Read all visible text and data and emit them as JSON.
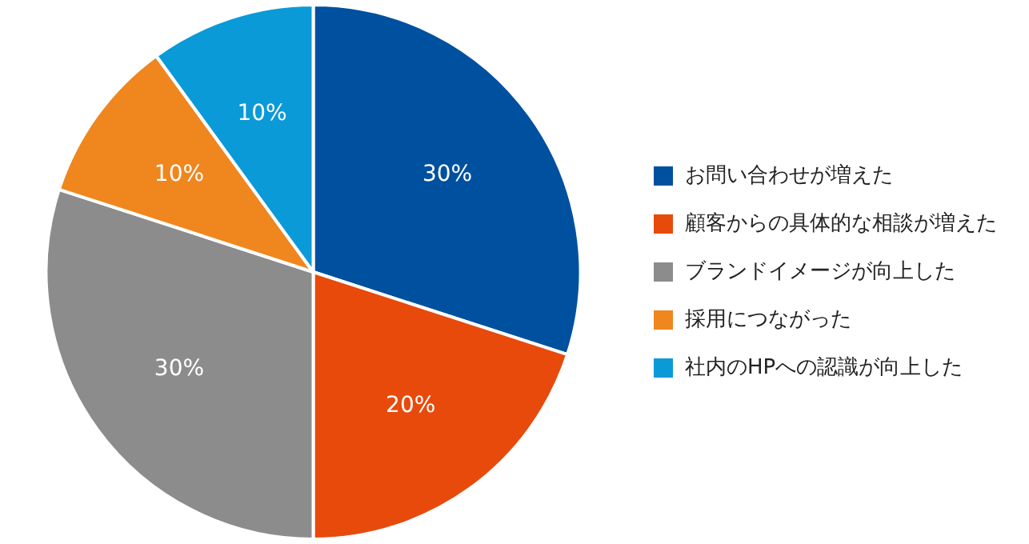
{
  "chart_data": {
    "type": "pie",
    "categories": [
      "お問い合わせが増えた",
      "顧客からの具体的な相談が増えた",
      "ブランドイメージが向上した",
      "採用につながった",
      "社内のHPへの認識が向上した"
    ],
    "values": [
      30,
      20,
      30,
      10,
      10
    ],
    "colors": [
      "#0050a0",
      "#e84a0c",
      "#8c8c8c",
      "#f0861e",
      "#0a9ad8"
    ],
    "value_labels": [
      "30%",
      "20%",
      "30%",
      "10%",
      "10%"
    ],
    "legend": "right"
  }
}
